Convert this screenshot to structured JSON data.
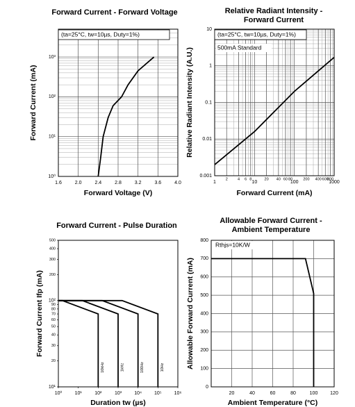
{
  "chart_data": [
    {
      "type": "line",
      "title": "Forward Current - Forward Voltage",
      "xlabel": "Forward Voltage (V)",
      "ylabel": "Forward Current (mA)",
      "annotations": [
        "(ta=25°C, tw=10µs, Duty=1%)"
      ],
      "x": [
        2.4,
        2.45,
        2.5,
        2.6,
        2.7,
        2.87,
        3.0,
        3.2,
        3.52
      ],
      "values": [
        1,
        3,
        10,
        30,
        60,
        100,
        200,
        450,
        1000
      ],
      "color": "#000000",
      "xlim": [
        1.6,
        4.0
      ],
      "xticks": [
        1.6,
        {
          "value": 2,
          "label": "2.0"
        },
        2.4,
        2.8,
        3.2,
        3.6,
        {
          "value": 4,
          "label": "4.0"
        }
      ],
      "ylim": [
        1,
        5000
      ],
      "yticks": [
        {
          "value": 1,
          "label": "10⁰"
        },
        {
          "value": 10,
          "label": "10¹"
        },
        {
          "value": 100,
          "label": "10²"
        },
        {
          "value": 1000,
          "label": "10³"
        }
      ],
      "yscale": "log",
      "xscale": "linear",
      "grid": true
    },
    {
      "type": "line",
      "title": [
        "Relative Radiant Intensity -",
        "Forward Current"
      ],
      "xlabel": "Forward Current (mA)",
      "ylabel": "Relative Radiant Intensity (A.U.)",
      "annotations": [
        "(ta=25°C, tw=10µs, Duty=1%)",
        "500mA Standard"
      ],
      "x": [
        1,
        10,
        100,
        1000
      ],
      "values": [
        0.002,
        0.016,
        0.2,
        1.7
      ],
      "color": "#000000",
      "xlim": [
        1,
        1000
      ],
      "xticks": [
        1,
        2,
        4,
        6,
        8,
        10,
        20,
        40,
        60,
        80,
        100,
        200,
        400,
        600,
        800,
        1000
      ],
      "ylim": [
        0.001,
        10
      ],
      "yticks": [
        0.001,
        0.01,
        0.1,
        1,
        10
      ],
      "yscale": "log",
      "xscale": "log",
      "grid": true
    },
    {
      "type": "line",
      "title": "Forward Current - Pulse Duration",
      "xlabel": "Duration tw (µs)",
      "ylabel": "Forward Current Ifp (mA)",
      "series": [
        {
          "name": "10kHz",
          "color": "#000000",
          "x": [
            1,
            1.6,
            100,
            100
          ],
          "values": [
            100,
            100,
            70,
            10
          ]
        },
        {
          "name": "1kHz",
          "color": "#000000",
          "x": [
            1,
            16,
            1000,
            1000
          ],
          "values": [
            100,
            100,
            70,
            10
          ]
        },
        {
          "name": "100Hz",
          "color": "#000000",
          "x": [
            1,
            160,
            10000,
            10000
          ],
          "values": [
            100,
            100,
            70,
            10
          ]
        },
        {
          "name": "10Hz",
          "color": "#000000",
          "x": [
            1,
            1600,
            100000,
            100000
          ],
          "values": [
            100,
            100,
            70,
            10
          ]
        }
      ],
      "xlim": [
        1,
        1000000
      ],
      "xticks": [
        {
          "value": 1,
          "label": "10⁰"
        },
        {
          "value": 10,
          "label": "10¹"
        },
        {
          "value": 100,
          "label": "10²"
        },
        {
          "value": 1000,
          "label": "10³"
        },
        {
          "value": 10000,
          "label": "10⁴"
        },
        {
          "value": 100000,
          "label": "10⁵"
        },
        {
          "value": 1000000,
          "label": "10⁶"
        }
      ],
      "ylim": [
        10,
        500
      ],
      "yticks": [
        {
          "value": 10,
          "label": "10¹"
        },
        20,
        30,
        40,
        50,
        60,
        70,
        80,
        90,
        {
          "value": 100,
          "label": "10²"
        },
        200,
        300,
        400,
        500
      ],
      "yscale": "log",
      "xscale": "log",
      "grid": false
    },
    {
      "type": "line",
      "title": [
        "Allowable Forward Current -",
        "Ambient Temperature"
      ],
      "xlabel": "Ambient Temperature (°C)",
      "ylabel": "Allowable Forward Current (mA)",
      "annotations": [
        "Rthjs=10K/W"
      ],
      "x": [
        0,
        92,
        100,
        100
      ],
      "values": [
        700,
        700,
        510,
        0
      ],
      "color": "#000000",
      "xlim": [
        0,
        120
      ],
      "xticks": [
        20,
        40,
        60,
        80,
        100,
        120
      ],
      "ylim": [
        0,
        800
      ],
      "yticks": [
        0,
        100,
        200,
        300,
        400,
        500,
        600,
        700,
        800
      ],
      "yscale": "linear",
      "xscale": "linear",
      "grid": true
    }
  ]
}
